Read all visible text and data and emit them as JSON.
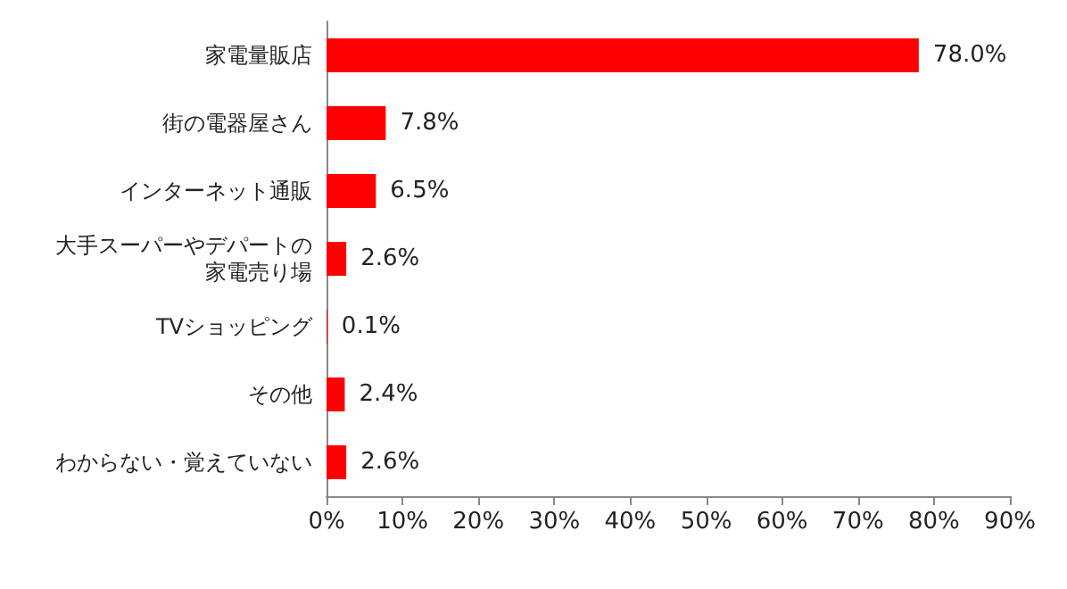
{
  "chart_data": {
    "type": "bar",
    "orientation": "horizontal",
    "categories": [
      "家電量販店",
      "街の電器屋さん",
      "インターネット通販",
      "大手スーパーやデパートの家電売り場",
      "TVショッピング",
      "その他",
      "わからない・覚えていない"
    ],
    "values": [
      78.0,
      7.8,
      6.5,
      2.6,
      0.1,
      2.4,
      2.6
    ],
    "value_labels": [
      "78.0%",
      "7.8%",
      "6.5%",
      "2.6%",
      "0.1%",
      "2.4%",
      "2.6%"
    ],
    "color": "#ff0000",
    "xlim": [
      0,
      90
    ],
    "xticks": [
      {
        "value": 0,
        "label": "0%"
      },
      {
        "value": 10,
        "label": "10%"
      },
      {
        "value": 20,
        "label": "20%"
      },
      {
        "value": 30,
        "label": "30%"
      },
      {
        "value": 40,
        "label": "40%"
      },
      {
        "value": 50,
        "label": "50%"
      },
      {
        "value": 60,
        "label": "60%"
      },
      {
        "value": 70,
        "label": "70%"
      },
      {
        "value": 80,
        "label": "80%"
      },
      {
        "value": 90,
        "label": "90%"
      }
    ],
    "grid": false
  }
}
